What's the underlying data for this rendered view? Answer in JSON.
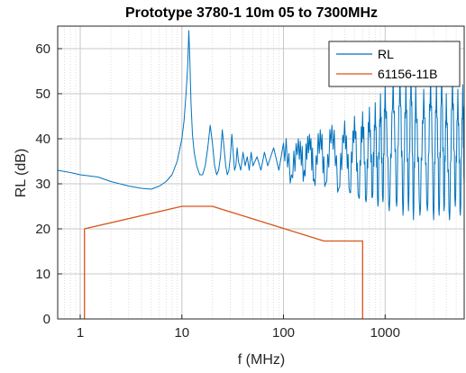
{
  "chart_data": {
    "type": "line",
    "title": "Prototype 3780-1 10m 05 to 7300MHz",
    "xlabel": "f (MHz)",
    "ylabel": "RL (dB)",
    "x_scale": "log",
    "xlim": [
      0.6,
      6000
    ],
    "ylim": [
      0,
      65
    ],
    "x_ticks": [
      1,
      10,
      100,
      1000
    ],
    "x_tick_labels": [
      "1",
      "10",
      "100",
      "1000"
    ],
    "y_ticks": [
      0,
      10,
      20,
      30,
      40,
      50,
      60
    ],
    "y_tick_labels": [
      "0",
      "10",
      "20",
      "30",
      "40",
      "50",
      "60"
    ],
    "grid": true,
    "legend_position": "top-right",
    "colors": {
      "rl": "#0072BD",
      "limit": "#D95319"
    },
    "series": [
      {
        "name": "RL",
        "x": [
          0.6,
          0.8,
          1,
          1.5,
          2,
          3,
          4,
          5,
          6,
          7,
          8,
          9,
          10,
          10.5,
          11,
          11.4,
          11.7,
          12,
          12.3,
          12.7,
          13.2,
          14,
          15,
          16,
          17,
          18,
          19,
          20,
          21,
          22,
          23,
          24,
          25,
          26,
          27,
          28,
          29,
          30,
          31,
          32,
          33,
          34,
          35,
          36,
          38,
          40,
          42,
          44,
          46,
          48,
          50,
          55,
          60,
          65,
          70,
          80,
          90,
          100,
          120,
          140,
          160,
          180,
          200,
          230,
          260,
          300,
          350,
          400,
          450,
          500,
          550,
          600,
          650,
          700,
          750,
          800,
          850,
          900,
          950,
          1000,
          1100,
          1200,
          1300,
          1400,
          1500,
          1600,
          1700,
          1800,
          1900,
          2000,
          2200,
          2400,
          2600,
          2800,
          3000,
          3200,
          3400,
          3600,
          3800,
          4000,
          4300,
          4600,
          4900,
          5200,
          5500,
          5800,
          6000
        ],
        "values": [
          33,
          32.5,
          32,
          31.5,
          30.5,
          29.5,
          29,
          28.8,
          29.5,
          30.5,
          32,
          35,
          40,
          44,
          50,
          56,
          64,
          57,
          48,
          41,
          37,
          34,
          32,
          32,
          34,
          38,
          43,
          39,
          34,
          32,
          33,
          36,
          42,
          38,
          34,
          32,
          33,
          36,
          41,
          37,
          33,
          34,
          38,
          35,
          33,
          37,
          34,
          36,
          33,
          37,
          34,
          36,
          33,
          37,
          34,
          38,
          33,
          39,
          32,
          40,
          33,
          41,
          31,
          42,
          30,
          43,
          29,
          44,
          28,
          45,
          27,
          46,
          26,
          47,
          27,
          48,
          25,
          50,
          26,
          52,
          24,
          54,
          25,
          55,
          23,
          53,
          24,
          56,
          22,
          52,
          23,
          51,
          24,
          55,
          22,
          53,
          23,
          56,
          24,
          50,
          22,
          54,
          25,
          51,
          23,
          52,
          30
        ]
      },
      {
        "name": "61156-11B",
        "x": [
          1.1,
          1.1,
          10,
          20,
          250,
          600,
          600
        ],
        "values": [
          0,
          20,
          25,
          25,
          17.3,
          17.3,
          0
        ]
      }
    ]
  }
}
